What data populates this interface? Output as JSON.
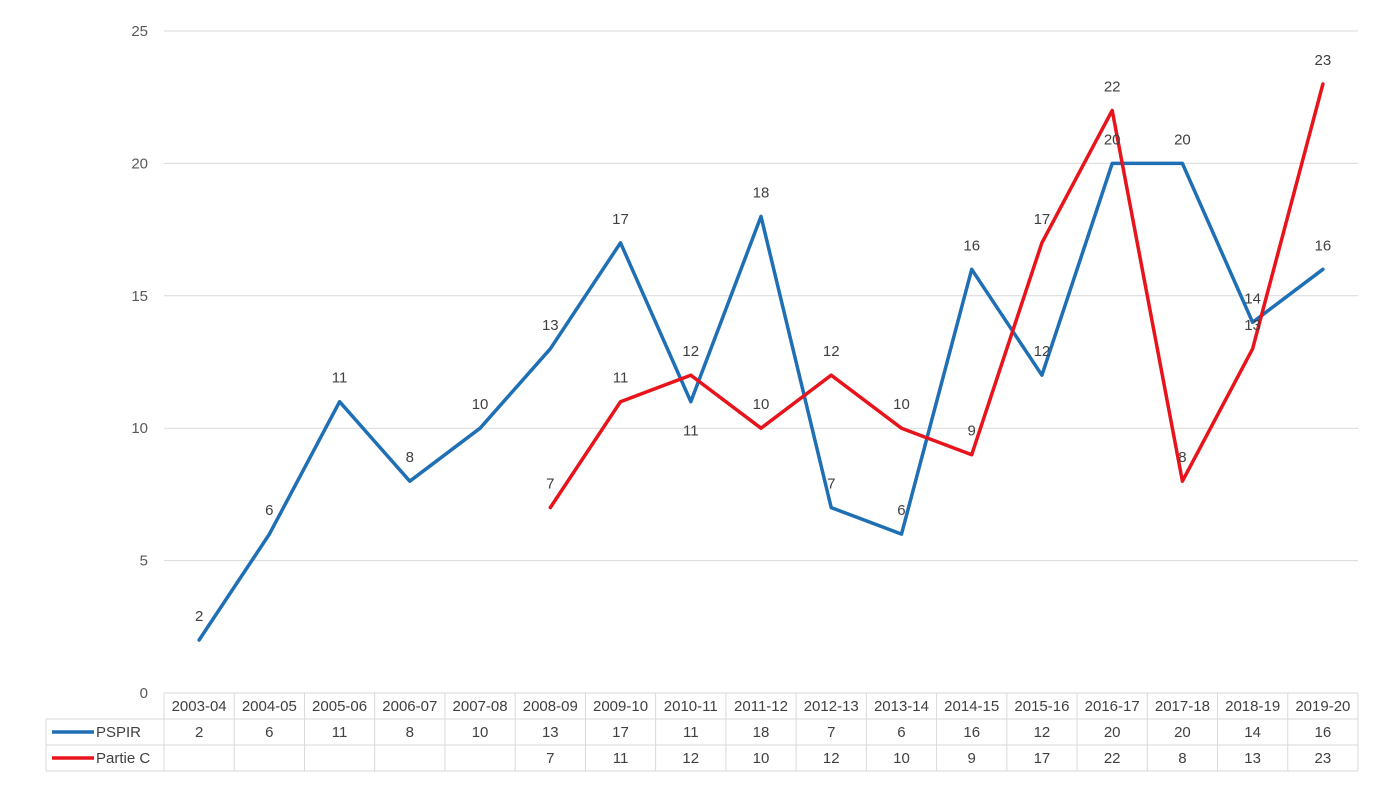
{
  "chart_data": {
    "type": "line",
    "title": "",
    "xlabel": "",
    "ylabel": "",
    "ylim": [
      0,
      25
    ],
    "yticks": [
      0,
      5,
      10,
      15,
      20,
      25
    ],
    "grid": "horizontal",
    "legend": "data table below chart",
    "categories": [
      "2003-04",
      "2004-05",
      "2005-06",
      "2006-07",
      "2007-08",
      "2008-09",
      "2009-10",
      "2010-11",
      "2011-12",
      "2012-13",
      "2013-14",
      "2014-15",
      "2015-16",
      "2016-17",
      "2017-18",
      "2018-19",
      "2019-20"
    ],
    "series": [
      {
        "name": "PSPIR",
        "color": "#1F6FB5",
        "values": [
          2,
          6,
          11,
          8,
          10,
          13,
          17,
          11,
          18,
          7,
          6,
          16,
          12,
          20,
          20,
          14,
          16
        ]
      },
      {
        "name": "Partie C",
        "color": "#E8141B",
        "values": [
          null,
          null,
          null,
          null,
          null,
          7,
          11,
          12,
          10,
          12,
          10,
          9,
          17,
          22,
          8,
          13,
          23
        ]
      }
    ]
  }
}
